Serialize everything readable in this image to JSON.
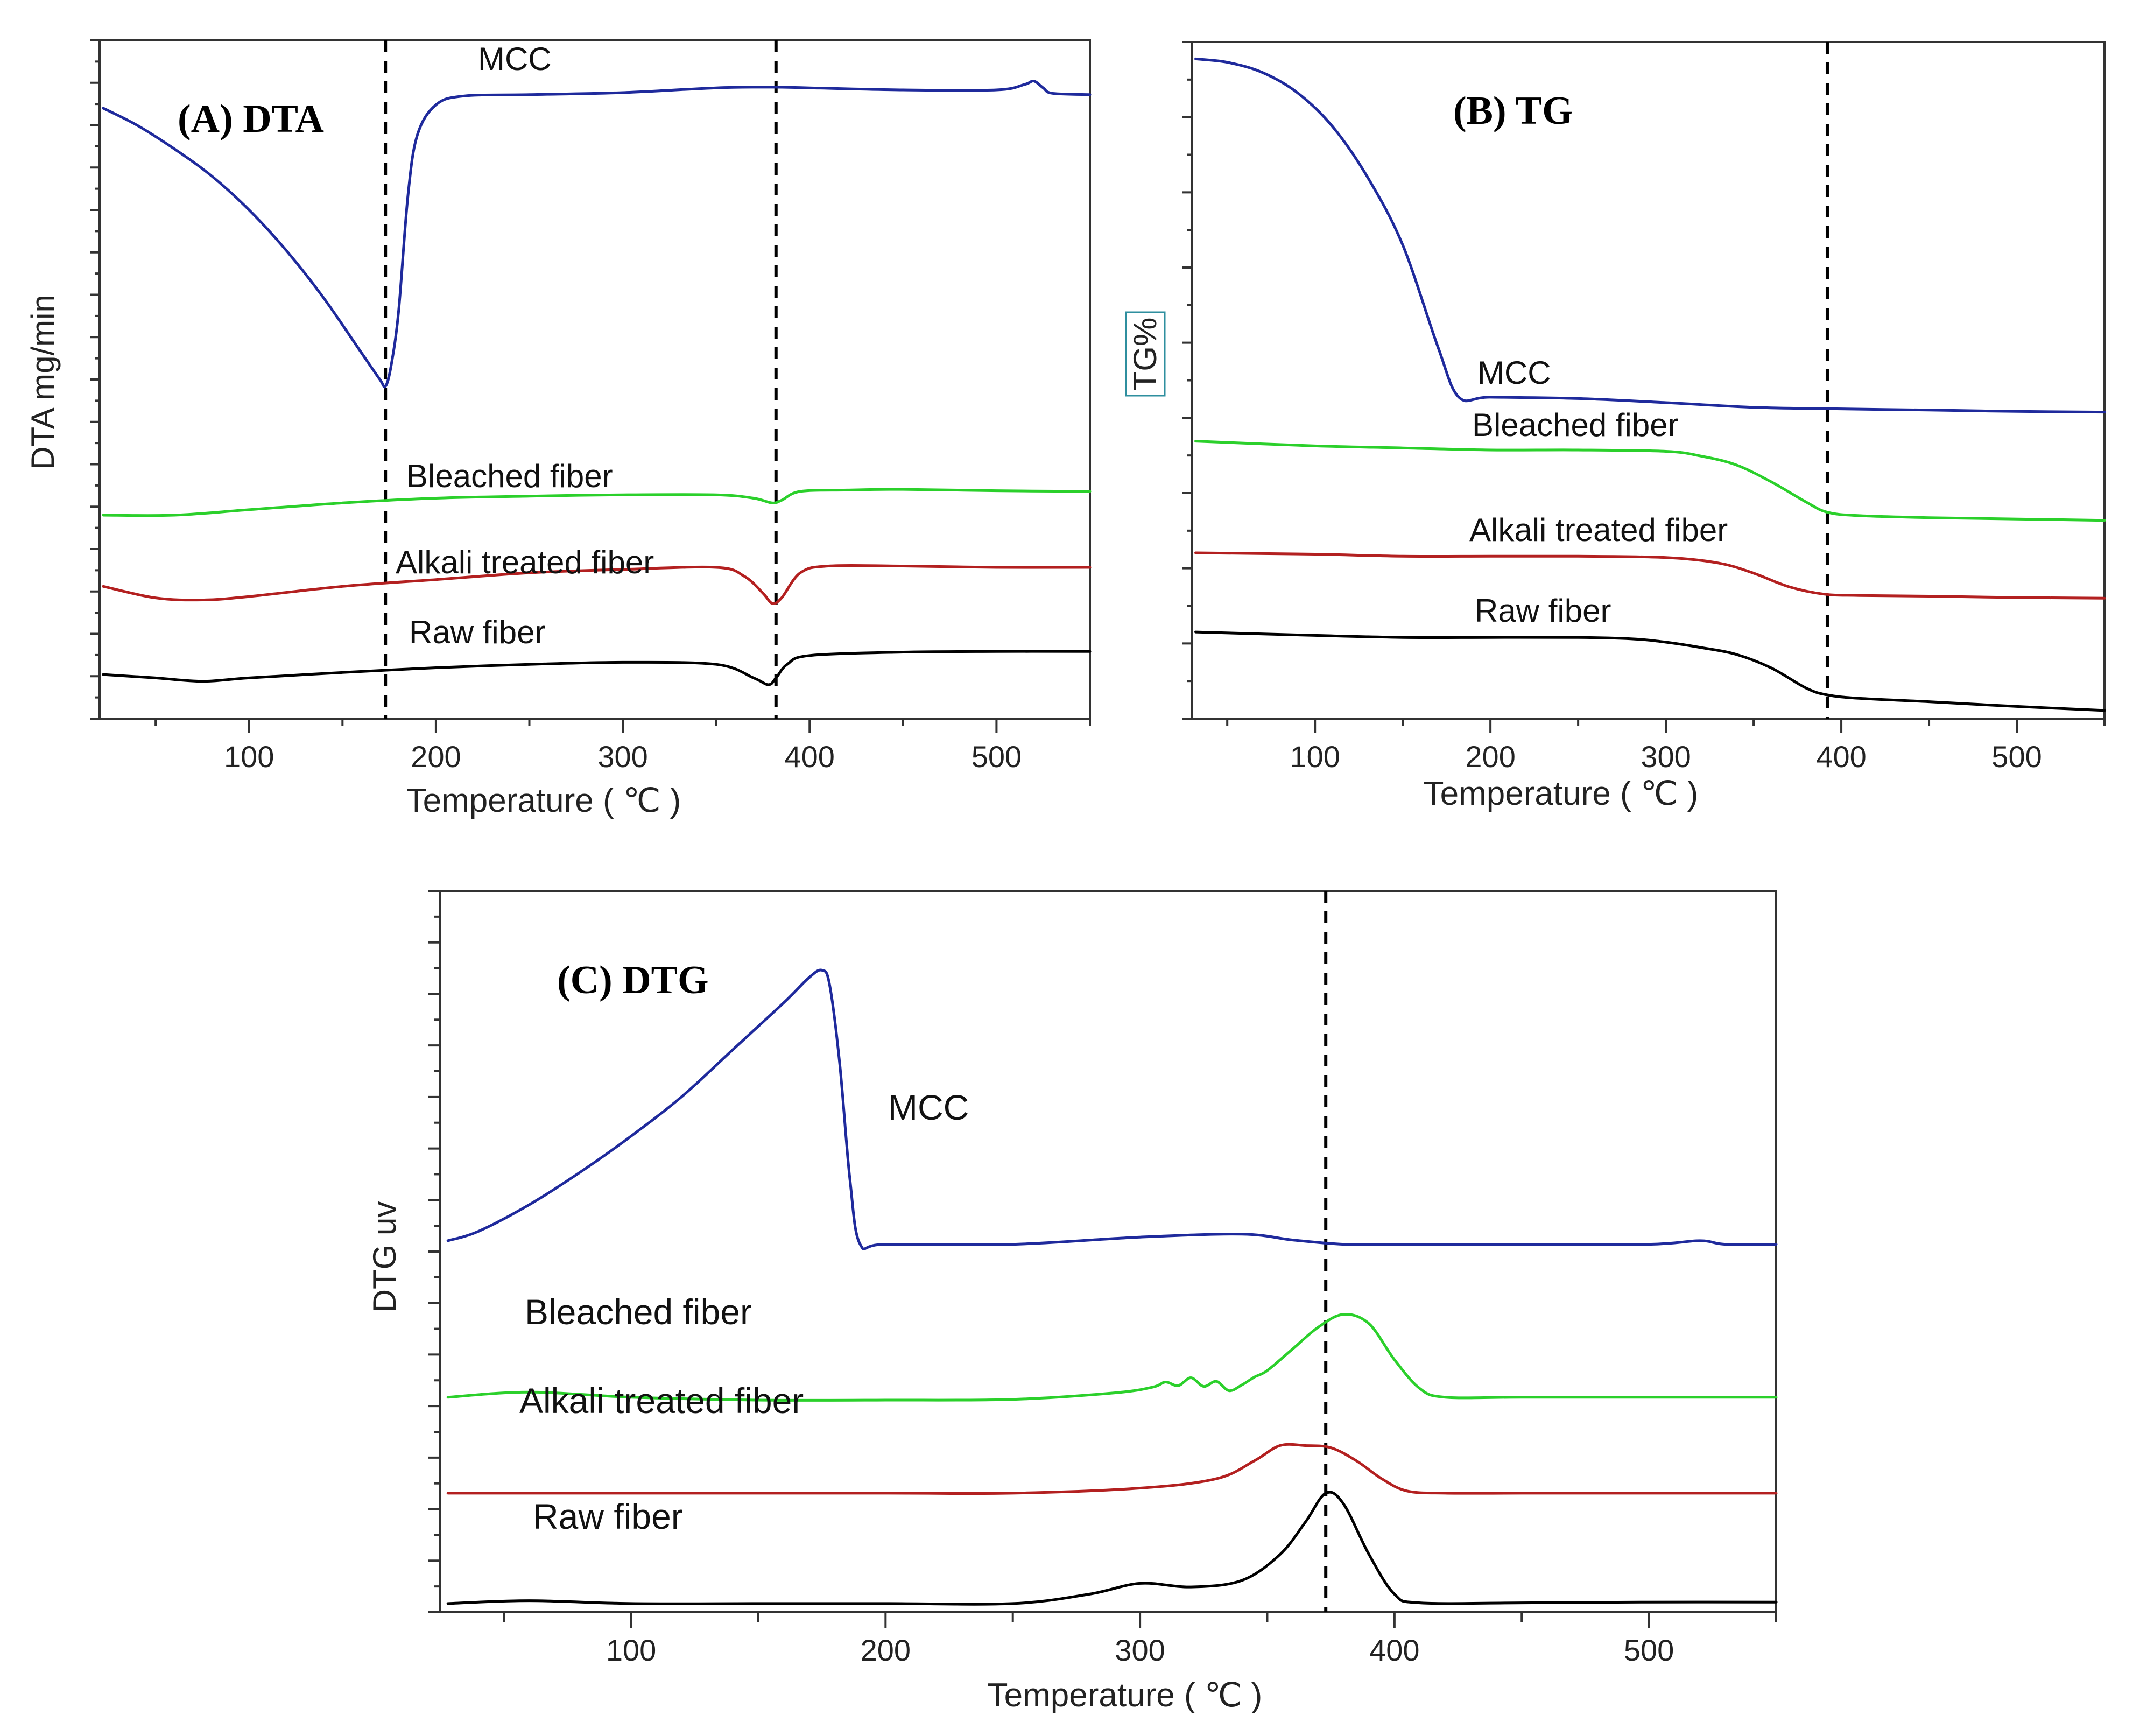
{
  "colors": {
    "MCC": "#1f2a9c",
    "Bleached fiber": "#2bd02b",
    "Alkali treated fiber": "#b32020",
    "Raw fiber": "#000000"
  },
  "chart_data": [
    {
      "id": "A",
      "type": "line",
      "panel_label": "(A) DTA",
      "xlabel": "Temperature ( ℃ )",
      "ylabel": "DTA mg/min",
      "xlim": [
        20,
        550
      ],
      "ylim": [
        0,
        100
      ],
      "xticks": [
        100,
        200,
        300,
        400,
        500
      ],
      "yticks_count": 16,
      "vlines": [
        173,
        382
      ],
      "series": [
        {
          "name": "MCC",
          "x": [
            22,
            40,
            60,
            80,
            100,
            120,
            140,
            160,
            170,
            173,
            176,
            180,
            185,
            190,
            200,
            215,
            250,
            300,
            350,
            380,
            400,
            450,
            500,
            515,
            520,
            525,
            530,
            550
          ],
          "y": [
            90,
            87.5,
            84,
            80,
            75,
            69,
            62,
            54,
            50,
            49,
            52,
            60,
            77,
            86,
            90.5,
            91.8,
            92,
            92.3,
            93,
            93.1,
            93,
            92.7,
            92.7,
            93.5,
            94,
            93,
            92.2,
            92
          ]
        },
        {
          "name": "Bleached fiber",
          "x": [
            22,
            60,
            100,
            150,
            200,
            250,
            300,
            350,
            370,
            380,
            385,
            395,
            420,
            450,
            500,
            550
          ],
          "y": [
            30,
            30,
            30.8,
            31.8,
            32.5,
            32.8,
            33,
            33,
            32.5,
            31.8,
            32.2,
            33.5,
            33.7,
            33.8,
            33.6,
            33.5
          ]
        },
        {
          "name": "Alkali treated fiber",
          "x": [
            22,
            50,
            75,
            100,
            150,
            200,
            250,
            300,
            350,
            365,
            375,
            380,
            385,
            395,
            410,
            450,
            500,
            550
          ],
          "y": [
            19.5,
            17.8,
            17.5,
            18,
            19.5,
            20.5,
            21.5,
            22,
            22.3,
            21,
            18.5,
            17,
            17.8,
            21.5,
            22.5,
            22.5,
            22.3,
            22.3
          ]
        },
        {
          "name": "Raw fiber",
          "x": [
            22,
            50,
            75,
            100,
            150,
            200,
            250,
            300,
            350,
            370,
            378,
            382,
            388,
            400,
            450,
            500,
            550
          ],
          "y": [
            6.5,
            6,
            5.5,
            6,
            6.8,
            7.5,
            8,
            8.3,
            8,
            6,
            5,
            6,
            8,
            9.3,
            9.8,
            9.9,
            9.9
          ]
        }
      ]
    },
    {
      "id": "B",
      "type": "line",
      "panel_label": "(B) TG",
      "xlabel": "Temperature ( ℃ )",
      "ylabel": "TG%",
      "xlim": [
        30,
        550
      ],
      "ylim": [
        0,
        100
      ],
      "xticks": [
        100,
        200,
        300,
        400,
        500
      ],
      "yticks_count": 9,
      "vlines": [
        392
      ],
      "series": [
        {
          "name": "MCC",
          "x": [
            32,
            50,
            70,
            90,
            110,
            130,
            150,
            170,
            182,
            200,
            250,
            300,
            350,
            392,
            450,
            500,
            550
          ],
          "y": [
            97.5,
            97,
            95.5,
            92.5,
            87.5,
            80,
            70,
            55,
            47.5,
            47.5,
            47.3,
            46.7,
            46,
            45.8,
            45.6,
            45.4,
            45.3
          ]
        },
        {
          "name": "Bleached fiber",
          "x": [
            32,
            100,
            150,
            200,
            250,
            300,
            320,
            340,
            360,
            380,
            392,
            410,
            450,
            500,
            550
          ],
          "y": [
            41,
            40.3,
            40,
            39.7,
            39.7,
            39.5,
            38.8,
            37.5,
            35,
            32,
            30.5,
            30,
            29.7,
            29.5,
            29.3
          ]
        },
        {
          "name": "Alkali treated fiber",
          "x": [
            32,
            100,
            150,
            200,
            250,
            300,
            330,
            350,
            370,
            390,
            410,
            450,
            500,
            550
          ],
          "y": [
            24.5,
            24.3,
            24,
            24,
            24,
            23.8,
            23,
            21.5,
            19.5,
            18.4,
            18.2,
            18.1,
            17.9,
            17.8
          ]
        },
        {
          "name": "Raw fiber",
          "x": [
            32,
            100,
            150,
            200,
            250,
            280,
            300,
            320,
            340,
            360,
            380,
            392,
            410,
            450,
            500,
            550
          ],
          "y": [
            12.8,
            12.3,
            12,
            12,
            12,
            11.8,
            11.3,
            10.5,
            9.5,
            7.5,
            4.5,
            3.5,
            3,
            2.5,
            1.8,
            1.2
          ]
        }
      ]
    },
    {
      "id": "C",
      "type": "line",
      "panel_label": "(C) DTG",
      "xlabel": "Temperature ( ℃ )",
      "ylabel": "DTG uv",
      "xlim": [
        25,
        550
      ],
      "ylim": [
        0,
        100
      ],
      "xticks": [
        100,
        200,
        300,
        400,
        500
      ],
      "yticks_count": 14,
      "vlines": [
        373
      ],
      "series": [
        {
          "name": "MCC",
          "x": [
            28,
            40,
            60,
            80,
            100,
            120,
            140,
            160,
            170,
            175,
            178,
            182,
            186,
            190,
            200,
            250,
            300,
            340,
            360,
            380,
            400,
            450,
            500,
            520,
            530,
            550
          ],
          "y": [
            51.5,
            52.8,
            56.5,
            61,
            66,
            71.5,
            78,
            84.5,
            88,
            89,
            87,
            76,
            60,
            51,
            51,
            51,
            52,
            52.4,
            51.6,
            51,
            51,
            51,
            51,
            51.5,
            51,
            51
          ]
        },
        {
          "name": "Bleached fiber",
          "x": [
            28,
            60,
            100,
            150,
            200,
            250,
            290,
            305,
            310,
            315,
            320,
            325,
            330,
            335,
            340,
            345,
            350,
            360,
            370,
            380,
            390,
            400,
            410,
            420,
            450,
            500,
            550
          ],
          "y": [
            29.8,
            30.5,
            29.8,
            29.4,
            29.4,
            29.5,
            30.4,
            31.2,
            31.9,
            31.4,
            32.5,
            31.3,
            32,
            30.7,
            31.5,
            32.6,
            33.5,
            36.5,
            39.5,
            41.3,
            40,
            35,
            31,
            29.8,
            29.8,
            29.8,
            29.8
          ]
        },
        {
          "name": "Alkali treated fiber",
          "x": [
            28,
            100,
            200,
            250,
            300,
            330,
            345,
            355,
            365,
            375,
            385,
            395,
            405,
            420,
            450,
            500,
            550
          ],
          "y": [
            16.5,
            16.5,
            16.5,
            16.5,
            17.2,
            18.5,
            21,
            23.1,
            23.1,
            22.8,
            21,
            18.5,
            16.8,
            16.5,
            16.5,
            16.5,
            16.5
          ]
        },
        {
          "name": "Raw fiber",
          "x": [
            28,
            60,
            100,
            150,
            200,
            250,
            280,
            300,
            320,
            340,
            355,
            365,
            373,
            380,
            390,
            400,
            410,
            450,
            500,
            550
          ],
          "y": [
            1.2,
            1.6,
            1.2,
            1.2,
            1.2,
            1.2,
            2.5,
            4,
            3.5,
            4.4,
            8,
            12.5,
            16.5,
            15,
            8,
            2.5,
            1.3,
            1.3,
            1.4,
            1.4
          ]
        }
      ]
    }
  ]
}
